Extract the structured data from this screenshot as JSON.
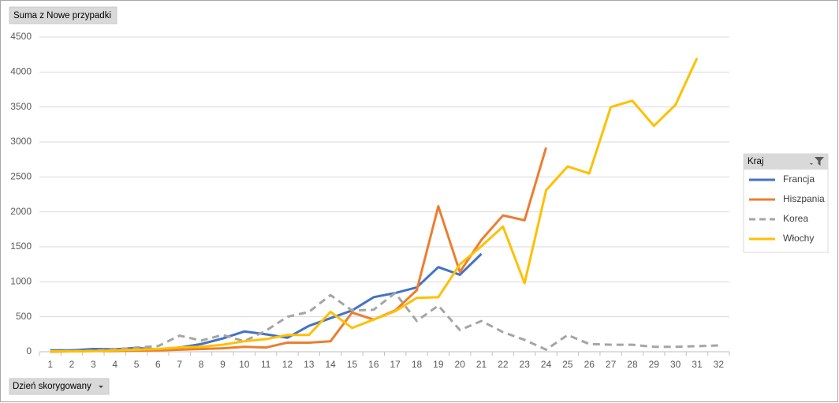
{
  "chart_data": {
    "type": "line",
    "value_field": "Suma z Nowe przypadki",
    "axis_field": "Dzień skorygowany",
    "legend_title": "Kraj",
    "legend": "right",
    "grid": true,
    "categories": [
      1,
      2,
      3,
      4,
      5,
      6,
      7,
      8,
      9,
      10,
      11,
      12,
      13,
      14,
      15,
      16,
      17,
      18,
      19,
      20,
      21,
      22,
      23,
      24,
      25,
      26,
      27,
      28,
      29,
      30,
      31,
      32
    ],
    "ylim": [
      0,
      4500
    ],
    "yticks": [
      0,
      500,
      1000,
      1500,
      2000,
      2500,
      3000,
      3500,
      4000,
      4500
    ],
    "series": [
      {
        "name": "Francja",
        "color": "#4472c4",
        "values": [
          20,
          20,
          40,
          35,
          55,
          30,
          60,
          110,
          190,
          290,
          250,
          200,
          370,
          480,
          590,
          780,
          840,
          920,
          1210,
          1100,
          1400,
          null,
          null,
          null,
          null,
          null,
          null,
          null,
          null,
          null,
          null,
          null
        ]
      },
      {
        "name": "Hiszpania",
        "color": "#ed7d31",
        "values": [
          0,
          5,
          10,
          10,
          15,
          20,
          30,
          40,
          50,
          70,
          60,
          130,
          130,
          150,
          560,
          460,
          590,
          880,
          2080,
          1140,
          1600,
          1950,
          1880,
          2920,
          null,
          null,
          null,
          null,
          null,
          null,
          null,
          null
        ]
      },
      {
        "name": "Korea",
        "color": "#a5a5a5",
        "dashed": true,
        "values": [
          5,
          10,
          15,
          30,
          60,
          80,
          230,
          160,
          240,
          150,
          300,
          500,
          570,
          810,
          590,
          600,
          840,
          440,
          660,
          310,
          440,
          280,
          170,
          30,
          240,
          110,
          100,
          100,
          70,
          70,
          80,
          90
        ]
      },
      {
        "name": "Włochy",
        "color": "#ffc000",
        "values": [
          5,
          5,
          10,
          20,
          30,
          40,
          60,
          70,
          100,
          150,
          180,
          240,
          240,
          570,
          340,
          460,
          580,
          770,
          780,
          1250,
          1510,
          1790,
          980,
          2310,
          2650,
          2550,
          3500,
          3590,
          3230,
          3530,
          4200,
          null
        ]
      }
    ]
  }
}
